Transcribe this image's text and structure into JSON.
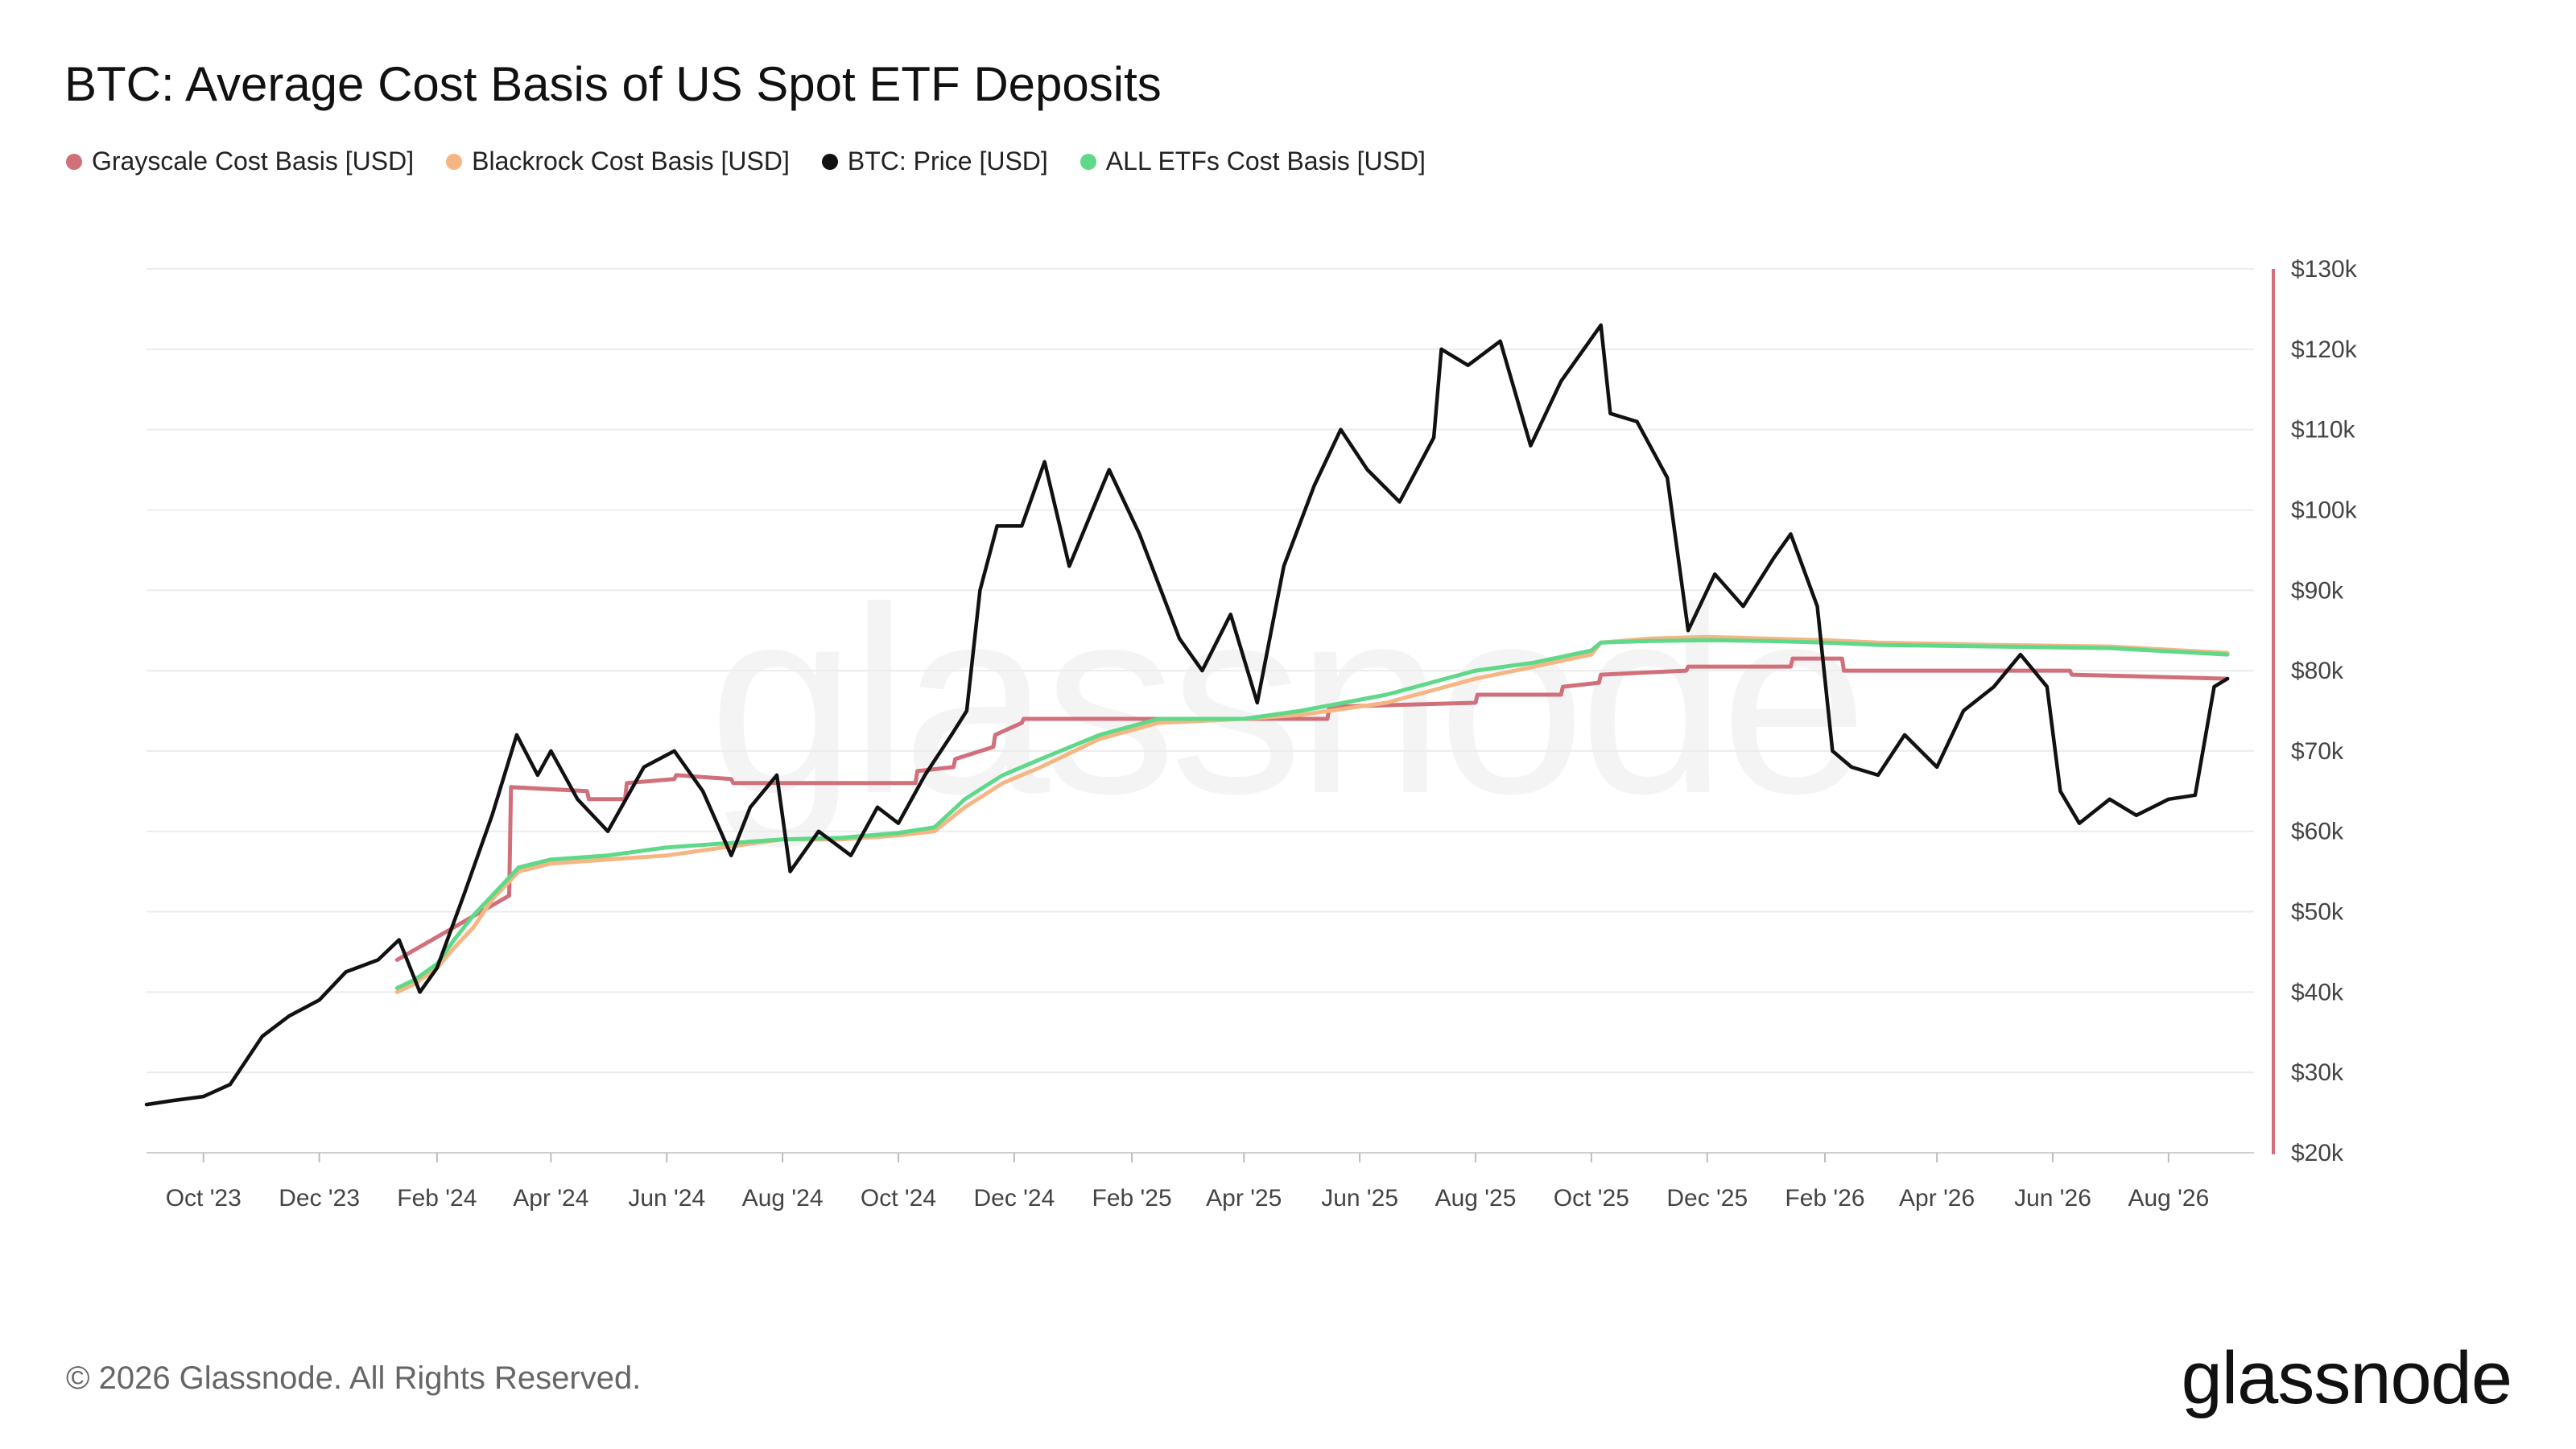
{
  "chart_data": {
    "type": "line",
    "title": "BTC: Average Cost Basis of US Spot ETF Deposits",
    "legend_placement": "top-left",
    "grid": true,
    "y_axis_side": "right",
    "ylim": [
      20000,
      130000
    ],
    "y_ticks": [
      {
        "value": 130000,
        "label": "$130k"
      },
      {
        "value": 120000,
        "label": "$120k"
      },
      {
        "value": 110000,
        "label": "$110k"
      },
      {
        "value": 100000,
        "label": "$100k"
      },
      {
        "value": 90000,
        "label": "$90k"
      },
      {
        "value": 80000,
        "label": "$80k"
      },
      {
        "value": 70000,
        "label": "$70k"
      },
      {
        "value": 60000,
        "label": "$60k"
      },
      {
        "value": 50000,
        "label": "$50k"
      },
      {
        "value": 40000,
        "label": "$40k"
      },
      {
        "value": 30000,
        "label": "$30k"
      },
      {
        "value": 20000,
        "label": "$20k"
      }
    ],
    "xlim": [
      "2023-09-01",
      "2026-09-15"
    ],
    "x_ticks": [
      {
        "value": "2023-10-01",
        "label": "Oct '23"
      },
      {
        "value": "2023-12-01",
        "label": "Dec '23"
      },
      {
        "value": "2024-02-01",
        "label": "Feb '24"
      },
      {
        "value": "2024-04-01",
        "label": "Apr '24"
      },
      {
        "value": "2024-06-01",
        "label": "Jun '24"
      },
      {
        "value": "2024-08-01",
        "label": "Aug '24"
      },
      {
        "value": "2024-10-01",
        "label": "Oct '24"
      },
      {
        "value": "2024-12-01",
        "label": "Dec '24"
      },
      {
        "value": "2025-02-01",
        "label": "Feb '25"
      },
      {
        "value": "2025-04-01",
        "label": "Apr '25"
      },
      {
        "value": "2025-06-01",
        "label": "Jun '25"
      },
      {
        "value": "2025-08-01",
        "label": "Aug '25"
      },
      {
        "value": "2025-10-01",
        "label": "Oct '25"
      },
      {
        "value": "2025-12-01",
        "label": "Dec '25"
      },
      {
        "value": "2026-02-01",
        "label": "Feb '26"
      },
      {
        "value": "2026-04-01",
        "label": "Apr '26"
      },
      {
        "value": "2026-06-01",
        "label": "Jun '26"
      },
      {
        "value": "2026-08-01",
        "label": "Aug '26"
      }
    ],
    "series": [
      {
        "name": "BTC: Price [USD]",
        "color": "#111111",
        "x": [
          "2023-09-01",
          "2023-09-15",
          "2023-10-01",
          "2023-10-15",
          "2023-11-01",
          "2023-11-15",
          "2023-12-01",
          "2023-12-15",
          "2024-01-01",
          "2024-01-12",
          "2024-01-23",
          "2024-02-01",
          "2024-02-15",
          "2024-03-01",
          "2024-03-14",
          "2024-03-25",
          "2024-04-01",
          "2024-04-15",
          "2024-05-01",
          "2024-05-20",
          "2024-06-05",
          "2024-06-20",
          "2024-07-05",
          "2024-07-15",
          "2024-07-29",
          "2024-08-05",
          "2024-08-20",
          "2024-09-06",
          "2024-09-20",
          "2024-10-01",
          "2024-10-15",
          "2024-10-29",
          "2024-11-06",
          "2024-11-13",
          "2024-11-22",
          "2024-12-05",
          "2024-12-17",
          "2024-12-30",
          "2025-01-20",
          "2025-02-05",
          "2025-02-26",
          "2025-03-10",
          "2025-03-25",
          "2025-04-08",
          "2025-04-22",
          "2025-05-08",
          "2025-05-22",
          "2025-06-05",
          "2025-06-22",
          "2025-07-10",
          "2025-07-14",
          "2025-07-28",
          "2025-08-14",
          "2025-08-30",
          "2025-09-15",
          "2025-10-06",
          "2025-10-11",
          "2025-10-25",
          "2025-11-10",
          "2025-11-21",
          "2025-12-05",
          "2025-12-20",
          "2026-01-05",
          "2026-01-14",
          "2026-01-28",
          "2026-02-05",
          "2026-02-15",
          "2026-03-01",
          "2026-03-15",
          "2026-04-01",
          "2026-04-15",
          "2026-05-01",
          "2026-05-15",
          "2026-05-29",
          "2026-06-05",
          "2026-06-15",
          "2026-07-01",
          "2026-07-15",
          "2026-08-01",
          "2026-08-15",
          "2026-08-25",
          "2026-09-01"
        ],
        "y": [
          26000,
          26500,
          27000,
          28500,
          34500,
          37000,
          39000,
          42500,
          44000,
          46500,
          40000,
          43000,
          52000,
          62000,
          72000,
          67000,
          70000,
          64000,
          60000,
          68000,
          70000,
          65000,
          57000,
          63000,
          67000,
          55000,
          60000,
          57000,
          63000,
          61000,
          67000,
          72000,
          75000,
          90000,
          98000,
          98000,
          106000,
          93000,
          105000,
          97000,
          84000,
          80000,
          87000,
          76000,
          93000,
          103000,
          110000,
          105000,
          101000,
          109000,
          120000,
          118000,
          121000,
          108000,
          116000,
          123000,
          112000,
          111000,
          104000,
          85000,
          92000,
          88000,
          94000,
          97000,
          88000,
          70000,
          68000,
          67000,
          72000,
          68000,
          75000,
          78000,
          82000,
          78000,
          65000,
          61000,
          64000,
          62000,
          64000,
          64500,
          78000,
          79000
        ]
      },
      {
        "name": "Grayscale Cost Basis [USD]",
        "color": "#d16f7a",
        "x": [
          "2024-01-11",
          "2024-03-10",
          "2024-03-11",
          "2024-04-20",
          "2024-04-21",
          "2024-05-10",
          "2024-05-11",
          "2024-06-05",
          "2024-06-06",
          "2024-07-05",
          "2024-07-06",
          "2024-10-10",
          "2024-10-11",
          "2024-10-30",
          "2024-10-31",
          "2024-11-20",
          "2024-11-21",
          "2024-12-05",
          "2024-12-06",
          "2025-05-15",
          "2025-05-16",
          "2025-08-01",
          "2025-08-02",
          "2025-09-15",
          "2025-09-16",
          "2025-10-05",
          "2025-10-06",
          "2025-11-20",
          "2025-11-21",
          "2026-01-14",
          "2026-01-15",
          "2026-02-10",
          "2026-02-11",
          "2026-06-10",
          "2026-06-11",
          "2026-09-01"
        ],
        "y": [
          44000,
          52000,
          65500,
          65000,
          64000,
          64000,
          66000,
          66500,
          67000,
          66500,
          66000,
          66000,
          67500,
          68000,
          69000,
          70500,
          72000,
          73500,
          74000,
          74000,
          75500,
          76000,
          77000,
          77000,
          78000,
          78500,
          79500,
          80000,
          80500,
          80500,
          81500,
          81500,
          80000,
          80000,
          79500,
          79000
        ]
      },
      {
        "name": "Blackrock Cost Basis [USD]",
        "color": "#f5b683",
        "x": [
          "2024-01-11",
          "2024-01-20",
          "2024-02-01",
          "2024-02-10",
          "2024-02-20",
          "2024-03-01",
          "2024-03-15",
          "2024-04-01",
          "2024-05-01",
          "2024-06-01",
          "2024-07-01",
          "2024-08-01",
          "2024-09-01",
          "2024-10-01",
          "2024-10-20",
          "2024-11-05",
          "2024-11-25",
          "2024-12-15",
          "2025-01-15",
          "2025-02-15",
          "2025-04-01",
          "2025-05-01",
          "2025-06-15",
          "2025-08-01",
          "2025-09-01",
          "2025-10-01",
          "2025-10-06",
          "2025-11-01",
          "2025-12-01",
          "2026-01-01",
          "2026-02-01",
          "2026-03-01",
          "2026-05-01",
          "2026-07-01",
          "2026-09-01"
        ],
        "y": [
          40000,
          41000,
          43000,
          45500,
          48000,
          51500,
          55000,
          56000,
          56500,
          57000,
          58000,
          59000,
          59000,
          59500,
          60000,
          63000,
          66000,
          68000,
          71500,
          73500,
          74000,
          74500,
          76000,
          79000,
          80500,
          82000,
          83500,
          84000,
          84200,
          84000,
          83800,
          83500,
          83200,
          83000,
          82200
        ]
      },
      {
        "name": "ALL ETFs Cost Basis [USD]",
        "color": "#5fd88a",
        "x": [
          "2024-01-11",
          "2024-01-20",
          "2024-02-01",
          "2024-02-10",
          "2024-02-20",
          "2024-03-01",
          "2024-03-15",
          "2024-04-01",
          "2024-05-01",
          "2024-06-01",
          "2024-07-01",
          "2024-08-01",
          "2024-09-01",
          "2024-10-01",
          "2024-10-20",
          "2024-11-05",
          "2024-11-25",
          "2024-12-15",
          "2025-01-15",
          "2025-02-15",
          "2025-04-01",
          "2025-05-01",
          "2025-06-15",
          "2025-08-01",
          "2025-09-01",
          "2025-10-01",
          "2025-10-06",
          "2025-11-01",
          "2025-12-01",
          "2026-01-01",
          "2026-02-01",
          "2026-03-01",
          "2026-05-01",
          "2026-07-01",
          "2026-09-01"
        ],
        "y": [
          40500,
          41500,
          43500,
          46500,
          49500,
          52000,
          55500,
          56500,
          57000,
          58000,
          58500,
          59000,
          59200,
          59800,
          60500,
          64000,
          67000,
          69000,
          72000,
          74000,
          74000,
          75000,
          77000,
          80000,
          81000,
          82500,
          83500,
          83700,
          83800,
          83700,
          83500,
          83200,
          83000,
          82800,
          82000
        ]
      }
    ]
  },
  "footer": {
    "copyright": "© 2026 Glassnode. All Rights Reserved.",
    "brand": "glassnode"
  },
  "watermark": "glassnode",
  "colors": {
    "grid": "#ececec",
    "axis_right": "#d16f7a"
  }
}
